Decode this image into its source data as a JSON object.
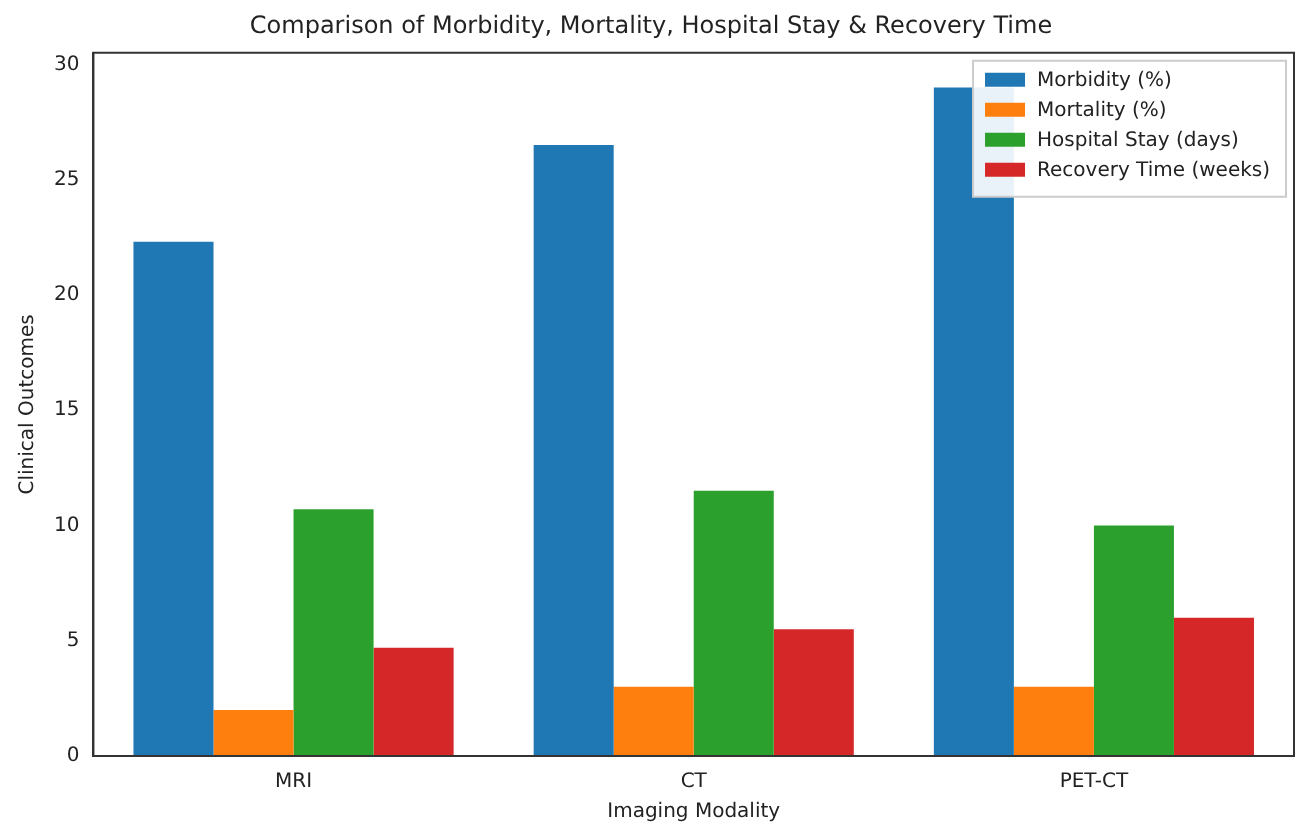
{
  "chart_data": {
    "type": "bar",
    "title": "Comparison of Morbidity, Mortality, Hospital Stay & Recovery Time",
    "xlabel": "Imaging Modality",
    "ylabel": "Clinical Outcomes",
    "categories": [
      "MRI",
      "CT",
      "PET-CT"
    ],
    "series": [
      {
        "name": "Morbidity (%)",
        "color": "#1f77b4",
        "values": [
          22.3,
          26.5,
          29
        ]
      },
      {
        "name": "Mortality (%)",
        "color": "#ff7f0e",
        "values": [
          2,
          3,
          3
        ]
      },
      {
        "name": "Hospital Stay (days)",
        "color": "#2ca02c",
        "values": [
          10.7,
          11.5,
          10
        ]
      },
      {
        "name": "Recovery Time (weeks)",
        "color": "#d62728",
        "values": [
          4.7,
          5.5,
          6
        ]
      }
    ],
    "ylim": [
      0,
      30.5
    ],
    "yticks": [
      0,
      5,
      10,
      15,
      20,
      25,
      30
    ],
    "grid": false,
    "legend": "top right"
  }
}
